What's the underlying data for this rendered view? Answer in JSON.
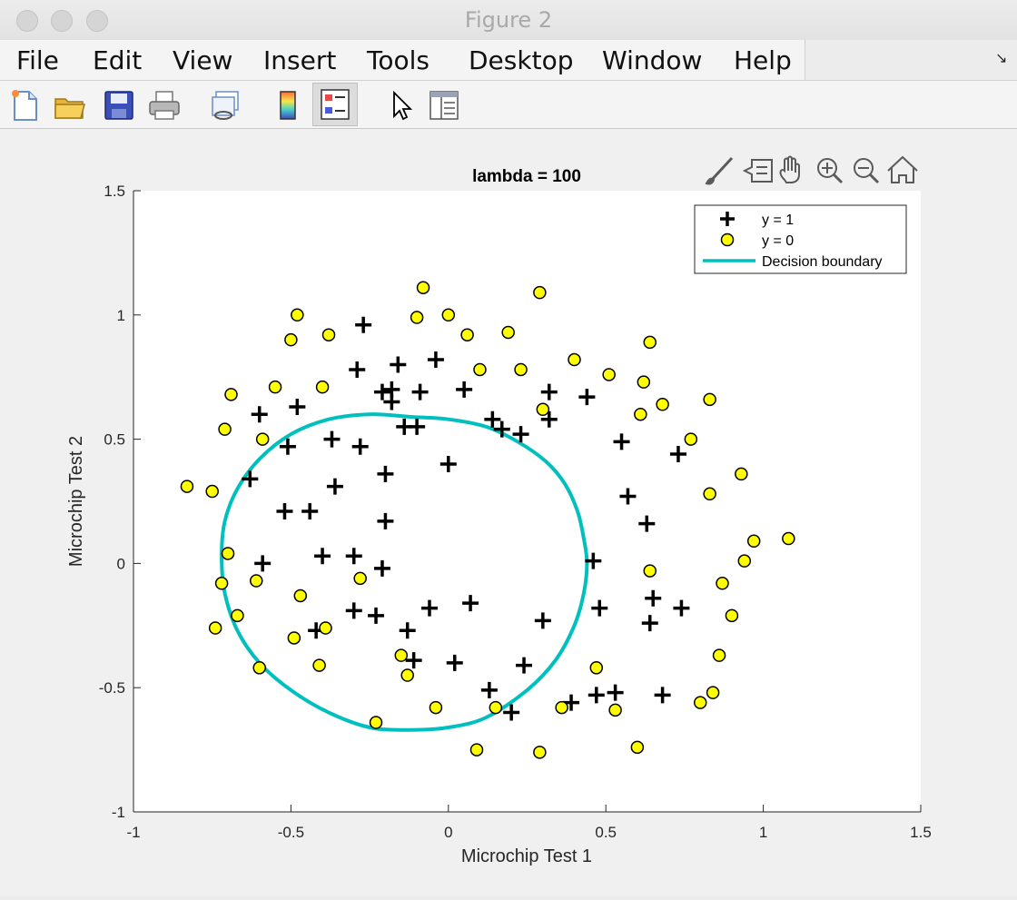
{
  "window": {
    "title": "Figure 2"
  },
  "menu": [
    "File",
    "Edit",
    "View",
    "Insert",
    "Tools",
    "Desktop",
    "Window",
    "Help"
  ],
  "toolbar": {
    "icons": [
      "new-figure-icon",
      "open-file-icon",
      "save-icon",
      "print-icon",
      "link-plot-icon",
      "colorbar-icon",
      "legend-icon",
      "pointer-icon",
      "property-inspector-icon"
    ]
  },
  "axes_toolbar": {
    "icons": [
      "brush-icon",
      "data-tip-icon",
      "pan-icon",
      "zoom-in-icon",
      "zoom-out-icon",
      "home-icon"
    ]
  },
  "chart_data": {
    "type": "scatter",
    "title": "lambda = 100",
    "xlabel": "Microchip Test 1",
    "ylabel": "Microchip Test 2",
    "xlim": [
      -1,
      1.5
    ],
    "ylim": [
      -1,
      1.5
    ],
    "xticks": [
      -1,
      -0.5,
      0,
      0.5,
      1,
      1.5
    ],
    "yticks": [
      -1,
      -0.5,
      0,
      0.5,
      1,
      1.5
    ],
    "xtick_labels": [
      "-1",
      "-0.5",
      "0",
      "0.5",
      "1",
      "1.5"
    ],
    "ytick_labels": [
      "-1",
      "-0.5",
      "0",
      "0.5",
      "1",
      "1.5"
    ],
    "grid": false,
    "legend_position": "top-right",
    "colors": {
      "positive": "#000000",
      "negative_fill": "#ffff00",
      "boundary": "#00bfbf"
    },
    "series": [
      {
        "name": "y = 1",
        "marker": "plus",
        "points": [
          [
            -0.27,
            0.96
          ],
          [
            -0.29,
            0.78
          ],
          [
            -0.16,
            0.8
          ],
          [
            -0.04,
            0.82
          ],
          [
            -0.21,
            0.69
          ],
          [
            -0.18,
            0.7
          ],
          [
            -0.09,
            0.69
          ],
          [
            0.05,
            0.7
          ],
          [
            -0.48,
            0.63
          ],
          [
            -0.6,
            0.6
          ],
          [
            -0.18,
            0.65
          ],
          [
            0.32,
            0.69
          ],
          [
            0.44,
            0.67
          ],
          [
            -0.37,
            0.5
          ],
          [
            -0.28,
            0.47
          ],
          [
            -0.51,
            0.47
          ],
          [
            -0.14,
            0.55
          ],
          [
            -0.1,
            0.55
          ],
          [
            0.14,
            0.58
          ],
          [
            0.17,
            0.54
          ],
          [
            0.23,
            0.52
          ],
          [
            0.32,
            0.58
          ],
          [
            0.55,
            0.49
          ],
          [
            0.73,
            0.44
          ],
          [
            -0.63,
            0.34
          ],
          [
            -0.2,
            0.36
          ],
          [
            -0.36,
            0.31
          ],
          [
            0.0,
            0.4
          ],
          [
            -0.52,
            0.21
          ],
          [
            -0.44,
            0.21
          ],
          [
            -0.2,
            0.17
          ],
          [
            0.57,
            0.27
          ],
          [
            0.63,
            0.16
          ],
          [
            -0.59,
            0.0
          ],
          [
            -0.4,
            0.03
          ],
          [
            -0.3,
            0.03
          ],
          [
            -0.21,
            -0.02
          ],
          [
            0.46,
            0.01
          ],
          [
            -0.3,
            -0.19
          ],
          [
            -0.23,
            -0.21
          ],
          [
            -0.13,
            -0.27
          ],
          [
            -0.06,
            -0.18
          ],
          [
            0.07,
            -0.16
          ],
          [
            0.3,
            -0.23
          ],
          [
            0.48,
            -0.18
          ],
          [
            0.65,
            -0.14
          ],
          [
            0.74,
            -0.18
          ],
          [
            0.64,
            -0.24
          ],
          [
            -0.42,
            -0.27
          ],
          [
            -0.11,
            -0.39
          ],
          [
            0.02,
            -0.4
          ],
          [
            0.24,
            -0.41
          ],
          [
            0.13,
            -0.51
          ],
          [
            0.2,
            -0.6
          ],
          [
            0.39,
            -0.56
          ],
          [
            0.47,
            -0.53
          ],
          [
            0.53,
            -0.52
          ],
          [
            0.68,
            -0.53
          ]
        ]
      },
      {
        "name": "y = 0",
        "marker": "circle",
        "points": [
          [
            -0.08,
            1.11
          ],
          [
            0.29,
            1.09
          ],
          [
            -0.48,
            1.0
          ],
          [
            -0.1,
            0.99
          ],
          [
            0.0,
            1.0
          ],
          [
            -0.5,
            0.9
          ],
          [
            -0.38,
            0.92
          ],
          [
            0.06,
            0.92
          ],
          [
            0.19,
            0.93
          ],
          [
            0.64,
            0.89
          ],
          [
            0.4,
            0.82
          ],
          [
            0.1,
            0.78
          ],
          [
            0.23,
            0.78
          ],
          [
            0.51,
            0.76
          ],
          [
            0.62,
            0.73
          ],
          [
            -0.55,
            0.71
          ],
          [
            -0.4,
            0.71
          ],
          [
            -0.69,
            0.68
          ],
          [
            0.68,
            0.64
          ],
          [
            0.83,
            0.66
          ],
          [
            -0.71,
            0.54
          ],
          [
            0.3,
            0.62
          ],
          [
            0.61,
            0.6
          ],
          [
            0.77,
            0.5
          ],
          [
            -0.59,
            0.5
          ],
          [
            -0.83,
            0.31
          ],
          [
            -0.75,
            0.29
          ],
          [
            0.83,
            0.28
          ],
          [
            0.93,
            0.36
          ],
          [
            -0.7,
            0.04
          ],
          [
            0.97,
            0.09
          ],
          [
            1.08,
            0.1
          ],
          [
            0.94,
            0.01
          ],
          [
            -0.61,
            -0.07
          ],
          [
            -0.72,
            -0.08
          ],
          [
            -0.28,
            -0.06
          ],
          [
            0.64,
            -0.03
          ],
          [
            0.87,
            -0.08
          ],
          [
            -0.47,
            -0.13
          ],
          [
            -0.67,
            -0.21
          ],
          [
            -0.74,
            -0.26
          ],
          [
            -0.39,
            -0.26
          ],
          [
            -0.49,
            -0.3
          ],
          [
            0.9,
            -0.21
          ],
          [
            -0.15,
            -0.37
          ],
          [
            -0.6,
            -0.42
          ],
          [
            -0.41,
            -0.41
          ],
          [
            -0.13,
            -0.45
          ],
          [
            0.47,
            -0.42
          ],
          [
            0.86,
            -0.37
          ],
          [
            0.8,
            -0.56
          ],
          [
            0.84,
            -0.52
          ],
          [
            -0.04,
            -0.58
          ],
          [
            0.15,
            -0.58
          ],
          [
            0.36,
            -0.58
          ],
          [
            0.53,
            -0.59
          ],
          [
            -0.23,
            -0.64
          ],
          [
            0.09,
            -0.75
          ],
          [
            0.29,
            -0.76
          ],
          [
            0.6,
            -0.74
          ]
        ]
      },
      {
        "name": "Decision boundary",
        "marker": "line",
        "points": [
          [
            -0.25,
            0.6
          ],
          [
            -0.12,
            0.59
          ],
          [
            0.0,
            0.58
          ],
          [
            0.12,
            0.55
          ],
          [
            0.22,
            0.49
          ],
          [
            0.31,
            0.41
          ],
          [
            0.37,
            0.32
          ],
          [
            0.41,
            0.21
          ],
          [
            0.43,
            0.1
          ],
          [
            0.44,
            0.0
          ],
          [
            0.43,
            -0.12
          ],
          [
            0.4,
            -0.25
          ],
          [
            0.34,
            -0.39
          ],
          [
            0.25,
            -0.51
          ],
          [
            0.12,
            -0.62
          ],
          [
            0.0,
            -0.66
          ],
          [
            -0.12,
            -0.67
          ],
          [
            -0.25,
            -0.66
          ],
          [
            -0.38,
            -0.6
          ],
          [
            -0.5,
            -0.51
          ],
          [
            -0.6,
            -0.4
          ],
          [
            -0.67,
            -0.27
          ],
          [
            -0.71,
            -0.12
          ],
          [
            -0.72,
            0.03
          ],
          [
            -0.71,
            0.17
          ],
          [
            -0.67,
            0.3
          ],
          [
            -0.6,
            0.42
          ],
          [
            -0.5,
            0.52
          ],
          [
            -0.38,
            0.58
          ],
          [
            -0.25,
            0.6
          ]
        ]
      }
    ]
  }
}
